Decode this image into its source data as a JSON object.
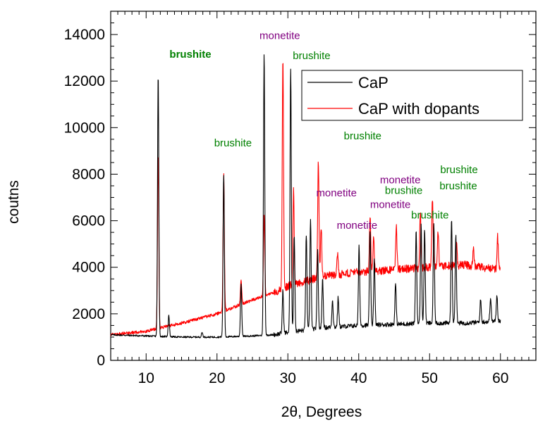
{
  "chart_data": {
    "type": "line",
    "xlabel": "2θ, Degrees",
    "ylabel": "coutns",
    "xlim": [
      5,
      65
    ],
    "ylim": [
      0,
      15000
    ],
    "x_ticks": [
      10,
      20,
      30,
      40,
      50,
      60
    ],
    "y_ticks": [
      0,
      2000,
      4000,
      6000,
      8000,
      10000,
      12000,
      14000
    ],
    "x_tick_labels": [
      "10",
      "20",
      "30",
      "40",
      "50",
      "60"
    ],
    "y_tick_labels": [
      "0",
      "2000",
      "4000",
      "6000",
      "8000",
      "10000",
      "12000",
      "14000"
    ],
    "grid": false,
    "legend_position": "top-right",
    "series": [
      {
        "name": "CaP",
        "color": "#000000",
        "x_range": [
          5,
          60
        ],
        "baseline": [
          [
            5,
            1100
          ],
          [
            10,
            1050
          ],
          [
            15,
            1000
          ],
          [
            20,
            1000
          ],
          [
            25,
            1050
          ],
          [
            28,
            1100
          ],
          [
            30,
            1200
          ],
          [
            35,
            1400
          ],
          [
            40,
            1500
          ],
          [
            45,
            1550
          ],
          [
            50,
            1600
          ],
          [
            55,
            1600
          ],
          [
            60,
            1700
          ]
        ],
        "peaks": [
          [
            11.7,
            12300
          ],
          [
            13.2,
            1950
          ],
          [
            17.9,
            1200
          ],
          [
            20.95,
            8000
          ],
          [
            23.4,
            3300
          ],
          [
            26.65,
            13200
          ],
          [
            29.3,
            3000
          ],
          [
            30.4,
            12600
          ],
          [
            30.9,
            5400
          ],
          [
            32.6,
            5400
          ],
          [
            33.2,
            6100
          ],
          [
            34.2,
            4700
          ],
          [
            34.9,
            3500
          ],
          [
            36.3,
            2600
          ],
          [
            37.1,
            2700
          ],
          [
            40.05,
            4900
          ],
          [
            41.6,
            5600
          ],
          [
            42.2,
            4300
          ],
          [
            45.2,
            3300
          ],
          [
            48.1,
            5600
          ],
          [
            48.8,
            5900
          ],
          [
            49.3,
            5600
          ],
          [
            50.6,
            5900
          ],
          [
            53.1,
            6100
          ],
          [
            53.7,
            5400
          ],
          [
            57.2,
            2600
          ],
          [
            58.6,
            2700
          ],
          [
            59.5,
            2800
          ]
        ]
      },
      {
        "name": "CaP with dopants",
        "color": "#ff0000",
        "x_range": [
          5,
          60
        ],
        "baseline": [
          [
            5,
            1100
          ],
          [
            10,
            1250
          ],
          [
            12,
            1400
          ],
          [
            15,
            1600
          ],
          [
            20,
            2000
          ],
          [
            25,
            2600
          ],
          [
            28,
            2900
          ],
          [
            30,
            3200
          ],
          [
            35,
            3600
          ],
          [
            40,
            3800
          ],
          [
            45,
            3900
          ],
          [
            50,
            4000
          ],
          [
            55,
            4100
          ],
          [
            60,
            3900
          ]
        ],
        "peaks": [
          [
            11.7,
            8900
          ],
          [
            20.95,
            8000
          ],
          [
            23.4,
            3500
          ],
          [
            26.65,
            6200
          ],
          [
            29.3,
            13100
          ],
          [
            30.8,
            7300
          ],
          [
            34.3,
            8600
          ],
          [
            34.7,
            5800
          ],
          [
            37.0,
            4600
          ],
          [
            41.6,
            6300
          ],
          [
            42.1,
            5400
          ],
          [
            45.3,
            5800
          ],
          [
            48.7,
            6400
          ],
          [
            50.4,
            6900
          ],
          [
            51.2,
            5600
          ],
          [
            53.8,
            5200
          ],
          [
            56.2,
            4800
          ],
          [
            59.6,
            5300
          ]
        ]
      }
    ],
    "annotations": [
      {
        "text": "brushite",
        "color": "#008000",
        "x": 13.3,
        "y": 13000,
        "bold": true
      },
      {
        "text": "monetite",
        "color": "#800080",
        "x": 26.0,
        "y": 13800,
        "bold": false
      },
      {
        "text": "brushite",
        "color": "#008000",
        "x": 30.7,
        "y": 12950,
        "bold": false
      },
      {
        "text": "brushite",
        "color": "#008000",
        "x": 19.6,
        "y": 9200,
        "bold": false
      },
      {
        "text": "brushite",
        "color": "#008000",
        "x": 37.9,
        "y": 9500,
        "bold": false
      },
      {
        "text": "monetite",
        "color": "#800080",
        "x": 34.0,
        "y": 7050,
        "bold": false
      },
      {
        "text": "monetite",
        "color": "#800080",
        "x": 43.0,
        "y": 7600,
        "bold": false
      },
      {
        "text": "brushite",
        "color": "#008000",
        "x": 43.7,
        "y": 7150,
        "bold": false
      },
      {
        "text": "monetite",
        "color": "#800080",
        "x": 41.6,
        "y": 6550,
        "bold": false
      },
      {
        "text": "brushite",
        "color": "#008000",
        "x": 47.4,
        "y": 6100,
        "bold": false
      },
      {
        "text": "monetite",
        "color": "#800080",
        "x": 36.9,
        "y": 5650,
        "bold": false
      },
      {
        "text": "brushite",
        "color": "#008000",
        "x": 51.5,
        "y": 8050,
        "bold": false
      },
      {
        "text": "brushite",
        "color": "#008000",
        "x": 51.4,
        "y": 7350,
        "bold": false
      }
    ]
  }
}
